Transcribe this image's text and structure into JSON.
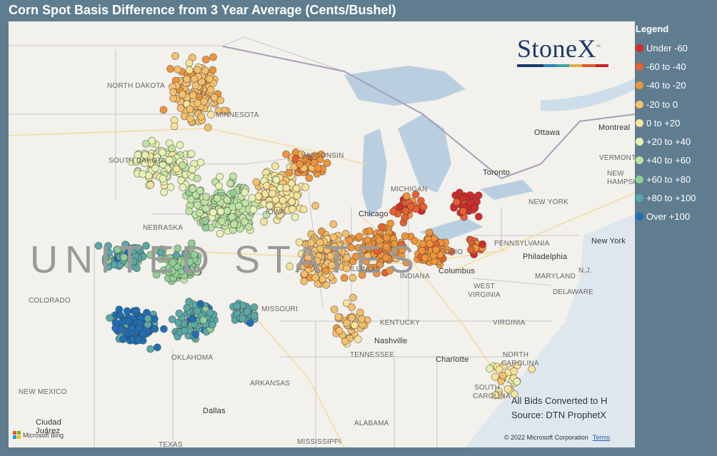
{
  "title": "Corn Spot Basis Difference from 3 Year Average (Cents/Bushel)",
  "logo": {
    "text": "StoneX",
    "tm": "™",
    "bar_colors": [
      "#1a3a6a",
      "#1a3a6a",
      "#2f7fc1",
      "#3aa5a0",
      "#e0b040",
      "#d65a2a",
      "#c8202a"
    ]
  },
  "country_label": "UNITED STATES",
  "map_labels": {
    "states": [
      "NORTH DAKOTA",
      "SOUTH DAKOTA",
      "NEBRASKA",
      "MINNESOTA",
      "WISCONSIN",
      "IOWA",
      "ILLINOIS",
      "INDIANA",
      "OHIO",
      "MICHIGAN",
      "MISSOURI",
      "KENTUCKY",
      "TENNESSEE",
      "WEST VIRGINIA",
      "VIRGINIA",
      "NORTH CAROLINA",
      "SOUTH CAROLINA",
      "PENNSYLVANIA",
      "NEW YORK",
      "MARYLAND",
      "DELAWARE",
      "VERMONT",
      "NEW HAMPSHIRE",
      "N.J.",
      "COLORADO",
      "NEW MEXICO",
      "OKLAHOMA",
      "ARKANSAS",
      "ALABAMA",
      "MISSISSIPPI",
      "TEXAS"
    ],
    "cities": [
      "Ottawa",
      "Montreal",
      "Toronto",
      "Chicago",
      "Columbus",
      "Philadelphia",
      "New York",
      "Nashville",
      "Charlotte",
      "Dallas",
      "Ciudad Juárez"
    ]
  },
  "footnote": [
    "All Bids Converted to H",
    "Source: DTN ProphetX"
  ],
  "copyright": "© 2022 Microsoft Corporation",
  "terms": "Terms",
  "bing": "Microsoft Bing",
  "legend": {
    "title": "Legend",
    "items": [
      {
        "label": "Under -60",
        "color": "#d42a2a"
      },
      {
        "label": "-60 to -40",
        "color": "#e8602f"
      },
      {
        "label": "-40 to -20",
        "color": "#f0943a"
      },
      {
        "label": "-20 to 0",
        "color": "#f5bf6b"
      },
      {
        "label": "0 to +20",
        "color": "#f7e49b"
      },
      {
        "label": "+20 to +40",
        "color": "#e6f2b3"
      },
      {
        "label": "+40 to +60",
        "color": "#bfe3a3"
      },
      {
        "label": "+60 to +80",
        "color": "#8fcf95"
      },
      {
        "label": "+80 to +100",
        "color": "#5aa8a8"
      },
      {
        "label": "Over +100",
        "color": "#1f6fb5"
      }
    ]
  }
}
